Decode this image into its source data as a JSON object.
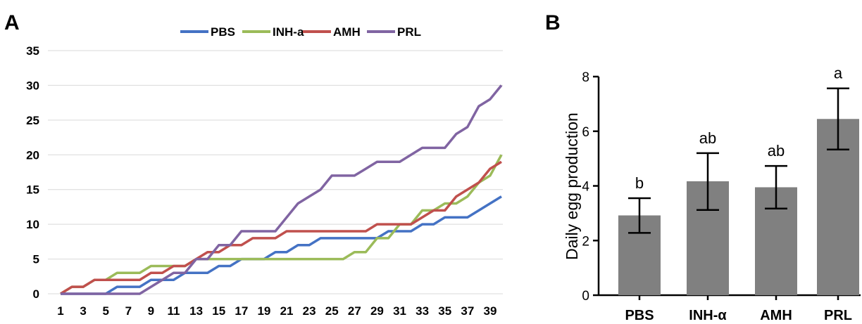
{
  "chart_data": [
    {
      "panel": "A",
      "type": "line",
      "title": "",
      "xlabel": "",
      "ylabel": "",
      "ylim": [
        0,
        35
      ],
      "yticks": [
        "0",
        "5",
        "10",
        "15",
        "20",
        "25",
        "30",
        "35"
      ],
      "xticks": [
        "1",
        "3",
        "5",
        "7",
        "9",
        "11",
        "13",
        "15",
        "17",
        "19",
        "21",
        "23",
        "25",
        "27",
        "29",
        "31",
        "33",
        "35",
        "37",
        "39"
      ],
      "x": [
        1,
        2,
        3,
        4,
        5,
        6,
        7,
        8,
        9,
        10,
        11,
        12,
        13,
        14,
        15,
        16,
        17,
        18,
        19,
        20,
        21,
        22,
        23,
        24,
        25,
        26,
        27,
        28,
        29,
        30,
        31,
        32,
        33,
        34,
        35,
        36,
        37,
        38,
        39,
        40
      ],
      "grid": true,
      "legend_position": "top",
      "series": [
        {
          "name": "PBS",
          "color": "#4472C4",
          "values": [
            0,
            0,
            0,
            0,
            0,
            1,
            1,
            1,
            2,
            2,
            2,
            3,
            3,
            3,
            4,
            4,
            5,
            5,
            5,
            6,
            6,
            7,
            7,
            8,
            8,
            8,
            8,
            8,
            8,
            9,
            9,
            9,
            10,
            10,
            11,
            11,
            11,
            12,
            13,
            14
          ]
        },
        {
          "name": "INH-a",
          "color": "#9BBB59",
          "values": [
            0,
            1,
            1,
            2,
            2,
            3,
            3,
            3,
            4,
            4,
            4,
            4,
            5,
            5,
            5,
            5,
            5,
            5,
            5,
            5,
            5,
            5,
            5,
            5,
            5,
            5,
            6,
            6,
            8,
            8,
            10,
            10,
            12,
            12,
            13,
            13,
            14,
            16,
            17,
            20
          ]
        },
        {
          "name": "AMH",
          "color": "#C0504D",
          "values": [
            0,
            1,
            1,
            2,
            2,
            2,
            2,
            2,
            3,
            3,
            4,
            4,
            5,
            6,
            6,
            7,
            7,
            8,
            8,
            8,
            9,
            9,
            9,
            9,
            9,
            9,
            9,
            9,
            10,
            10,
            10,
            10,
            11,
            12,
            12,
            14,
            15,
            16,
            18,
            19
          ]
        },
        {
          "name": "PRL",
          "color": "#8064A2",
          "values": [
            0,
            0,
            0,
            0,
            0,
            0,
            0,
            0,
            1,
            2,
            3,
            3,
            5,
            5,
            7,
            7,
            9,
            9,
            9,
            9,
            11,
            13,
            14,
            15,
            17,
            17,
            17,
            18,
            19,
            19,
            19,
            20,
            21,
            21,
            21,
            23,
            24,
            27,
            28,
            30
          ]
        }
      ]
    },
    {
      "panel": "B",
      "type": "bar",
      "title": "",
      "xlabel": "",
      "ylabel": "Daily egg production",
      "ylim": [
        0,
        8
      ],
      "yticks": [
        "0",
        "2",
        "4",
        "6",
        "8"
      ],
      "categories": [
        "PBS",
        "INH-α",
        "AMH",
        "PRL"
      ],
      "values": [
        2.92,
        4.17,
        3.95,
        6.45
      ],
      "error_low": [
        2.28,
        3.12,
        3.17,
        5.33
      ],
      "error_high": [
        3.55,
        5.2,
        4.73,
        7.57
      ],
      "significance": [
        "b",
        "ab",
        "ab",
        "a"
      ],
      "bar_color": "#808080",
      "grid": false
    }
  ],
  "panels": {
    "a_label": "A",
    "b_label": "B"
  }
}
